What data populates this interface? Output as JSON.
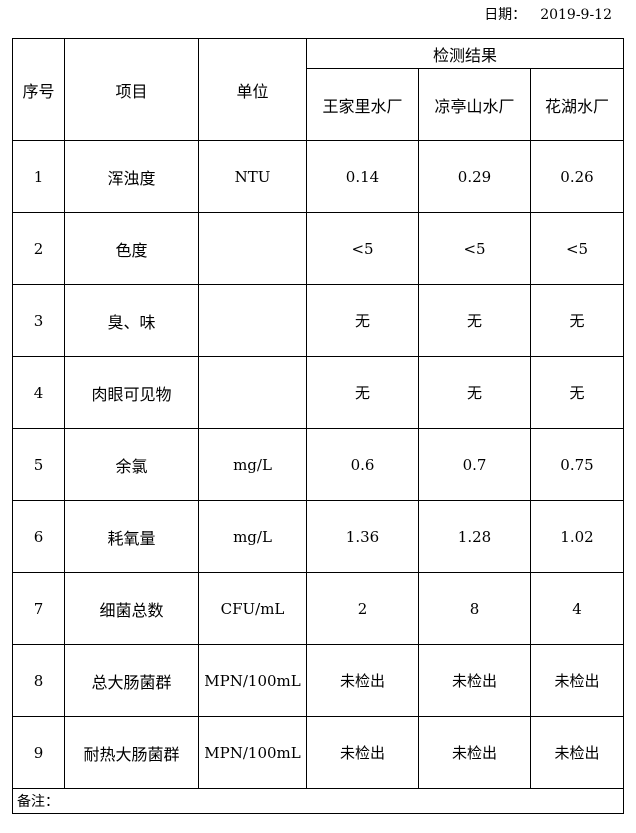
{
  "date_label": "日期：",
  "date_value": "2019-9-12",
  "headers": {
    "seq": "序号",
    "item": "项目",
    "unit": "单位",
    "results": "检测结果",
    "plants": [
      "王家里水厂",
      "凉亭山水厂",
      "花湖水厂"
    ]
  },
  "rows": [
    {
      "seq": "1",
      "item": "浑浊度",
      "unit": "NTU",
      "values": [
        "0.14",
        "0.29",
        "0.26"
      ]
    },
    {
      "seq": "2",
      "item": "色度",
      "unit": "",
      "values": [
        "<5",
        "<5",
        "<5"
      ]
    },
    {
      "seq": "3",
      "item": "臭、味",
      "unit": "",
      "values": [
        "无",
        "无",
        "无"
      ]
    },
    {
      "seq": "4",
      "item": "肉眼可见物",
      "unit": "",
      "values": [
        "无",
        "无",
        "无"
      ]
    },
    {
      "seq": "5",
      "item": "余氯",
      "unit": "mg/L",
      "values": [
        "0.6",
        "0.7",
        "0.75"
      ]
    },
    {
      "seq": "6",
      "item": "耗氧量",
      "unit": "mg/L",
      "values": [
        "1.36",
        "1.28",
        "1.02"
      ]
    },
    {
      "seq": "7",
      "item": "细菌总数",
      "unit": "CFU/mL",
      "values": [
        "2",
        "8",
        "4"
      ]
    },
    {
      "seq": "8",
      "item": "总大肠菌群",
      "unit": "MPN/100mL",
      "values": [
        "未检出",
        "未检出",
        "未检出"
      ]
    },
    {
      "seq": "9",
      "item": "耐热大肠菌群",
      "unit": "MPN/100mL",
      "values": [
        "未检出",
        "未检出",
        "未检出"
      ]
    }
  ],
  "remark_label": "备注："
}
